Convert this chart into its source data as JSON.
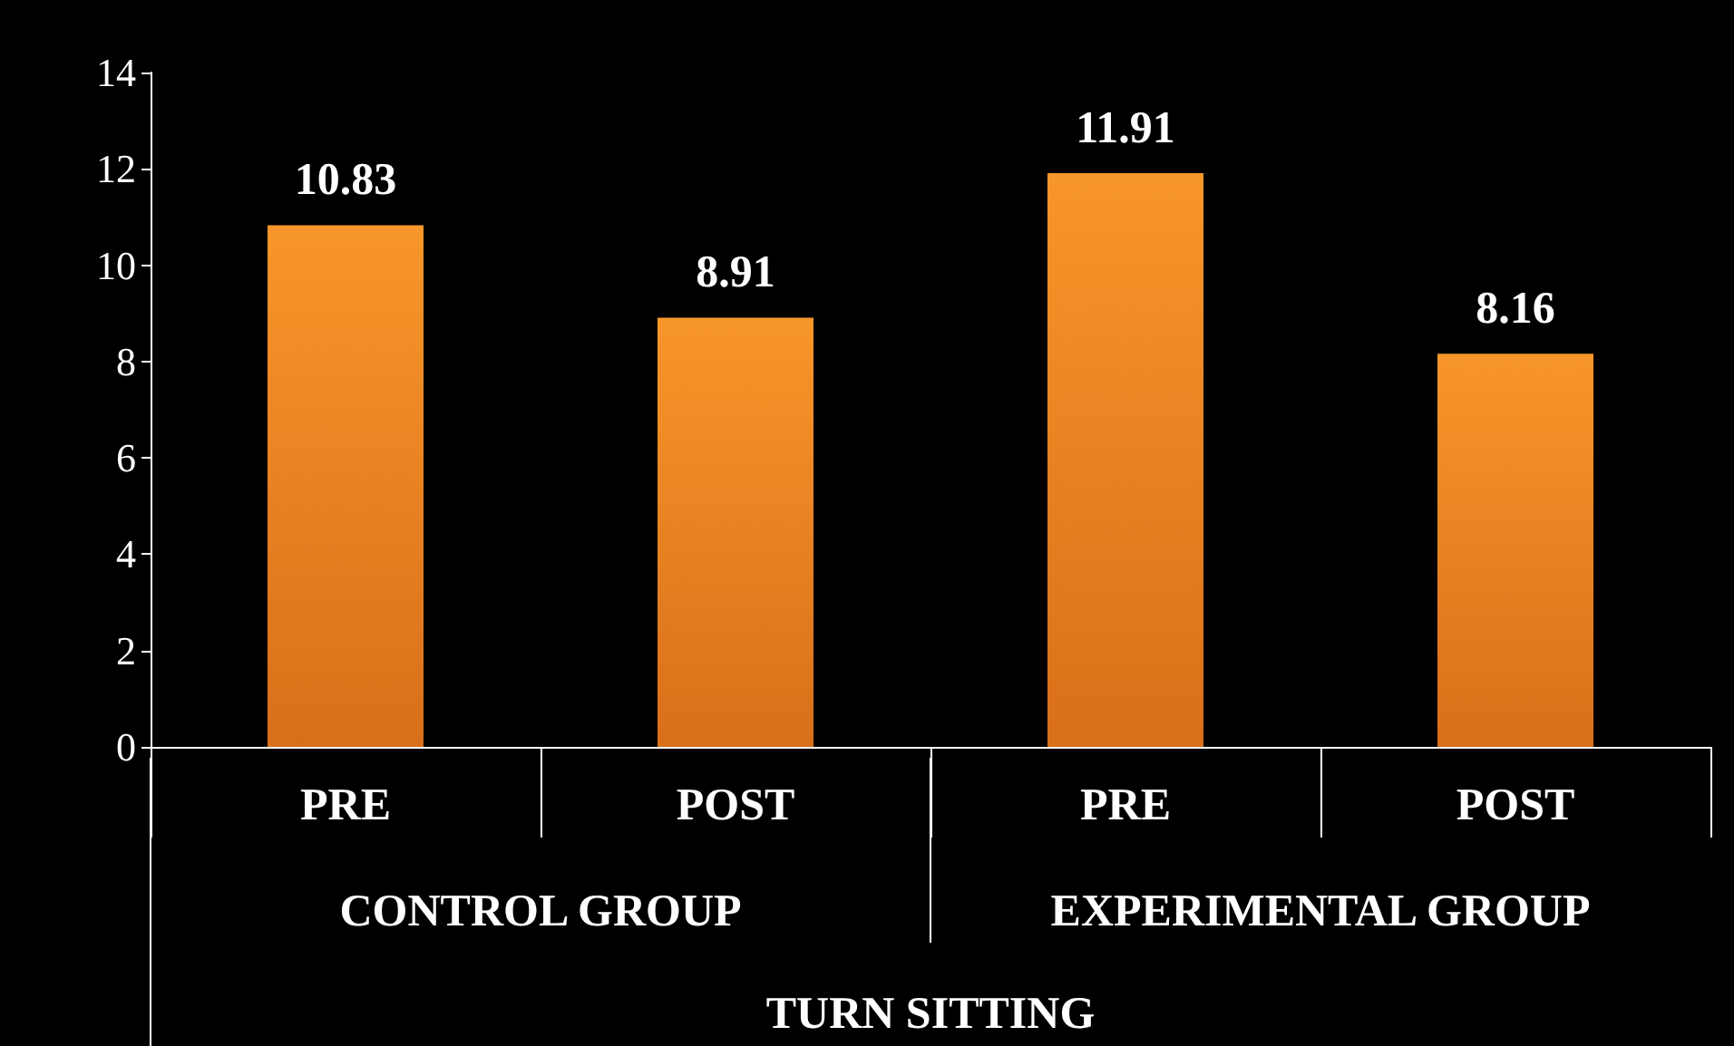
{
  "chart_data": {
    "type": "bar",
    "xlabel": "TURN SITTING",
    "categories": [
      "PRE",
      "POST",
      "PRE",
      "POST"
    ],
    "values": [
      10.83,
      8.91,
      11.91,
      8.16
    ],
    "color": "#f7962a",
    "annotations": [
      "CONTROL GROUP",
      "EXPERIMENTAL GROUP"
    ],
    "ylim": [
      0,
      14
    ],
    "yticks": [
      0,
      2,
      4,
      6,
      8,
      10,
      12,
      14
    ],
    "grid": false,
    "data_labels": true
  }
}
